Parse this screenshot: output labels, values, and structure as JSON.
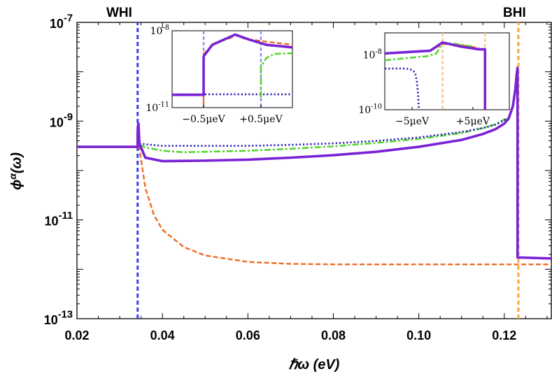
{
  "chart_data": {
    "type": "line",
    "title": "",
    "xlabel": "ℏω (eV)",
    "ylabel": "ϕα(ω)",
    "xlim": [
      0.02,
      0.131
    ],
    "ylim_log10": [
      -13,
      -7
    ],
    "x_ticks": [
      "0.02",
      "0.04",
      "0.06",
      "0.08",
      "0.10",
      "0.12"
    ],
    "x_tick_values": [
      0.02,
      0.04,
      0.06,
      0.08,
      0.1,
      0.12
    ],
    "y_ticks": [
      {
        "base": "10",
        "exp": "-7",
        "log": -7
      },
      {
        "base": "10",
        "exp": "-9",
        "log": -9
      },
      {
        "base": "10",
        "exp": "-11",
        "log": -11
      },
      {
        "base": "10",
        "exp": "-13",
        "log": -13
      }
    ],
    "markers": [
      {
        "label": "WHI",
        "x": 0.0342,
        "color": "#3b3ff2"
      },
      {
        "label": "BHI",
        "x": 0.1233,
        "color": "#f6a63a"
      }
    ],
    "series": [
      {
        "name": "total",
        "color": "#7a22d6",
        "style": "solid",
        "points": [
          [
            0.02,
            -9.52
          ],
          [
            0.0342,
            -9.52
          ],
          [
            0.0342,
            -9.2
          ],
          [
            0.0344,
            -9.05
          ],
          [
            0.0346,
            -9.45
          ],
          [
            0.036,
            -9.74
          ],
          [
            0.04,
            -9.81
          ],
          [
            0.05,
            -9.8
          ],
          [
            0.06,
            -9.78
          ],
          [
            0.07,
            -9.74
          ],
          [
            0.08,
            -9.69
          ],
          [
            0.09,
            -9.62
          ],
          [
            0.1,
            -9.52
          ],
          [
            0.11,
            -9.38
          ],
          [
            0.115,
            -9.26
          ],
          [
            0.118,
            -9.16
          ],
          [
            0.12,
            -9.05
          ],
          [
            0.121,
            -8.95
          ],
          [
            0.122,
            -8.7
          ],
          [
            0.1226,
            -8.35
          ],
          [
            0.1229,
            -8.05
          ],
          [
            0.1231,
            -7.92
          ],
          [
            0.1231,
            -11.76
          ],
          [
            0.131,
            -11.78
          ]
        ]
      },
      {
        "name": "dotted-blue",
        "color": "#2b22b8",
        "style": "dotted",
        "points": [
          [
            0.0346,
            -9.45
          ],
          [
            0.036,
            -9.47
          ],
          [
            0.04,
            -9.5
          ],
          [
            0.05,
            -9.5
          ],
          [
            0.06,
            -9.5
          ],
          [
            0.07,
            -9.48
          ],
          [
            0.08,
            -9.45
          ],
          [
            0.09,
            -9.4
          ],
          [
            0.1,
            -9.33
          ],
          [
            0.11,
            -9.22
          ],
          [
            0.115,
            -9.14
          ],
          [
            0.118,
            -9.07
          ],
          [
            0.12,
            -8.98
          ],
          [
            0.121,
            -8.94
          ]
        ]
      },
      {
        "name": "dashdot-green",
        "color": "#55d62f",
        "style": "dashdot",
        "points": [
          [
            0.0346,
            -9.48
          ],
          [
            0.036,
            -9.53
          ],
          [
            0.04,
            -9.6
          ],
          [
            0.045,
            -9.63
          ],
          [
            0.05,
            -9.62
          ],
          [
            0.06,
            -9.6
          ],
          [
            0.07,
            -9.56
          ],
          [
            0.08,
            -9.51
          ],
          [
            0.09,
            -9.44
          ],
          [
            0.1,
            -9.36
          ],
          [
            0.11,
            -9.24
          ],
          [
            0.115,
            -9.14
          ],
          [
            0.118,
            -9.06
          ],
          [
            0.12,
            -8.97
          ],
          [
            0.121,
            -8.93
          ]
        ]
      },
      {
        "name": "dashed-orange",
        "color": "#ee6a1f",
        "style": "dashed",
        "points": [
          [
            0.0342,
            -9.05
          ],
          [
            0.0344,
            -9.2
          ],
          [
            0.0346,
            -9.55
          ],
          [
            0.036,
            -10.35
          ],
          [
            0.038,
            -10.9
          ],
          [
            0.04,
            -11.2
          ],
          [
            0.045,
            -11.55
          ],
          [
            0.05,
            -11.72
          ],
          [
            0.06,
            -11.85
          ],
          [
            0.07,
            -11.89
          ],
          [
            0.08,
            -11.9
          ],
          [
            0.1,
            -11.9
          ],
          [
            0.12,
            -11.9
          ],
          [
            0.131,
            -11.9
          ]
        ]
      }
    ],
    "insets": [
      {
        "name": "WHI-inset",
        "ylim_log10": [
          -11,
          -8
        ],
        "xlim": [
          -1.05,
          1.05
        ],
        "y_ticks": [
          {
            "base": "10",
            "exp": "-8",
            "log": -8
          },
          {
            "base": "10",
            "exp": "-11",
            "log": -11
          }
        ],
        "x_ticks": [
          {
            "label": "−0.5μeV",
            "x": -0.5
          },
          {
            "label": "+0.5μeV",
            "x": 0.5
          }
        ],
        "markers": [
          {
            "x": -0.5,
            "color": "#8e8ef5"
          },
          {
            "x": 0.5,
            "color": "#8e8ef5"
          }
        ],
        "series": [
          {
            "name": "dotted-blue",
            "color": "#2b22b8",
            "style": "dotted",
            "points": [
              [
                -1.05,
                -10.48
              ],
              [
                1.05,
                -10.48
              ]
            ]
          },
          {
            "name": "dashed-orange",
            "color": "#ee6a1f",
            "style": "dashed",
            "points": [
              [
                -0.5,
                -10.5
              ],
              [
                -0.5,
                -10.85
              ],
              [
                -0.5,
                -8.9
              ],
              [
                -0.3,
                -8.5
              ],
              [
                0,
                -8.25
              ],
              [
                0.05,
                -8.15
              ],
              [
                0.2,
                -8.3
              ],
              [
                0.5,
                -8.4
              ],
              [
                1.05,
                -8.55
              ]
            ]
          },
          {
            "name": "dashdot-green",
            "color": "#55d62f",
            "style": "dashdot",
            "points": [
              [
                0.5,
                -10.6
              ],
              [
                0.5,
                -9.4
              ],
              [
                0.6,
                -9.05
              ],
              [
                0.75,
                -8.9
              ],
              [
                1.05,
                -8.88
              ]
            ]
          },
          {
            "name": "total",
            "color": "#7a22d6",
            "style": "solid",
            "points": [
              [
                -1.05,
                -10.5
              ],
              [
                -0.5,
                -10.5
              ],
              [
                -0.5,
                -9.0
              ],
              [
                -0.35,
                -8.55
              ],
              [
                -0.1,
                -8.3
              ],
              [
                0.05,
                -8.15
              ],
              [
                0.3,
                -8.35
              ],
              [
                0.6,
                -8.55
              ],
              [
                1.05,
                -8.65
              ]
            ]
          }
        ]
      },
      {
        "name": "BHI-inset",
        "ylim_log10": [
          -10,
          -7.2
        ],
        "xlim": [
          -9.5,
          11
        ],
        "y_ticks": [
          {
            "base": "10",
            "exp": "-8",
            "log": -8
          },
          {
            "base": "10",
            "exp": "-10",
            "log": -10
          }
        ],
        "x_ticks": [
          {
            "label": "−5μeV",
            "x": -5
          },
          {
            "label": "+5μeV",
            "x": 5
          }
        ],
        "markers": [
          {
            "x": 0,
            "color": "#f7c690"
          },
          {
            "x": 7,
            "color": "#f7c690"
          }
        ],
        "series": [
          {
            "name": "dotted-blue",
            "color": "#2b22b8",
            "style": "dotted",
            "points": [
              [
                -9.5,
                -8.5
              ],
              [
                -6,
                -8.5
              ],
              [
                -5,
                -8.55
              ],
              [
                -4.5,
                -8.65
              ],
              [
                -4.2,
                -9.0
              ],
              [
                -4,
                -9.5
              ],
              [
                -3.9,
                -10
              ]
            ]
          },
          {
            "name": "dashdot-green",
            "color": "#55d62f",
            "style": "dashdot",
            "points": [
              [
                -9.5,
                -8.2
              ],
              [
                -5,
                -8.1
              ],
              [
                -2.5,
                -8.05
              ],
              [
                -1,
                -7.95
              ],
              [
                0,
                -7.55
              ],
              [
                2,
                -7.6
              ],
              [
                5,
                -7.7
              ]
            ]
          },
          {
            "name": "dashed-orange",
            "color": "#ee6a1f",
            "style": "dashed",
            "points": [
              [
                -9.5,
                -7.95
              ],
              [
                -2,
                -7.85
              ],
              [
                0,
                -7.6
              ],
              [
                3,
                -7.65
              ],
              [
                6,
                -7.75
              ]
            ]
          },
          {
            "name": "total",
            "color": "#7a22d6",
            "style": "solid",
            "points": [
              [
                -9.5,
                -7.95
              ],
              [
                -2,
                -7.85
              ],
              [
                0,
                -7.55
              ],
              [
                3,
                -7.7
              ],
              [
                6,
                -7.8
              ],
              [
                7,
                -7.8
              ],
              [
                7,
                -10
              ]
            ]
          }
        ]
      }
    ]
  }
}
